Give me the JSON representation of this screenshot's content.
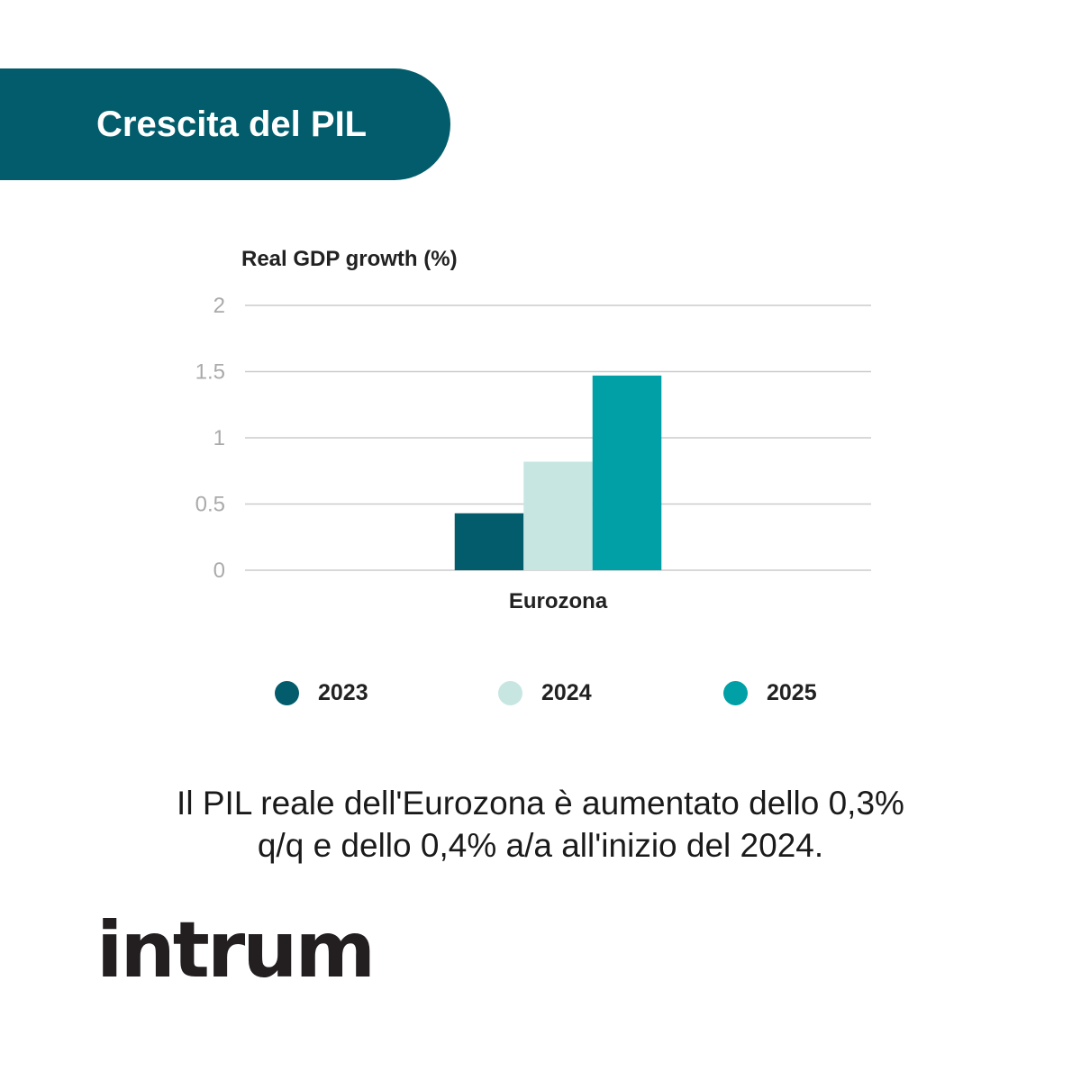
{
  "banner": {
    "title": "Crescita del PIL"
  },
  "chart_data": {
    "type": "bar",
    "ylabel": "Real GDP growth (%)",
    "categories": [
      "Eurozona"
    ],
    "yticks": [
      "0",
      "0.5",
      "1",
      "1.5",
      "2"
    ],
    "ylim": [
      0,
      2
    ],
    "grid": true,
    "legend_position": "bottom",
    "series": [
      {
        "name": "2023",
        "values": [
          0.43
        ],
        "color": "#035c6b"
      },
      {
        "name": "2024",
        "values": [
          0.82
        ],
        "color": "#c7e6e2"
      },
      {
        "name": "2025",
        "values": [
          1.47
        ],
        "color": "#00a0a6"
      }
    ]
  },
  "legend": {
    "items": [
      "2023",
      "2024",
      "2025"
    ]
  },
  "caption": {
    "line1": "Il PIL reale dell'Eurozona è aumentato dello 0,3%",
    "line2": "q/q e dello 0,4% a/a all'inizio del 2024."
  },
  "logo": {
    "text": "intrum"
  },
  "colors": {
    "brand": "#035c6b",
    "grid": "#cccccc",
    "tick_label": "#aaaaaa"
  }
}
